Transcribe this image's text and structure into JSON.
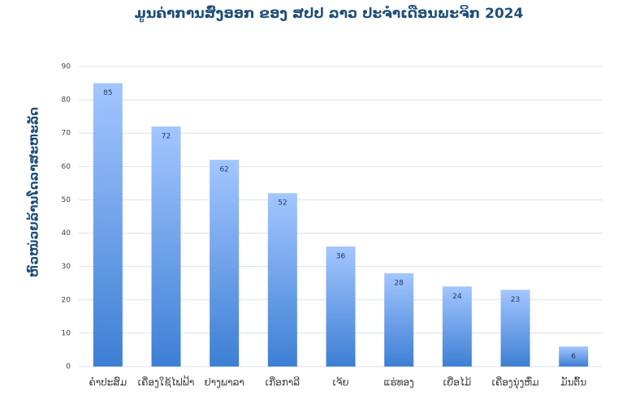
{
  "chart_data": {
    "type": "bar",
    "title": "ມູນຄ່າການສົ່ງອອກ ຂອງ ສປປ ລາວ ປະຈຳເດືອນພະຈິກ 2024",
    "y_label": "ຫົວໜ່ວຍລ້ານໂດລາສະຫະລັດ",
    "categories": [
      "ຄຳປະສົມ",
      "ເຄື່ອງໃຊ້ໄຟຟ້າ",
      "ຢາງພາລາ",
      "ເກືອກາລີ",
      "ເຈ້ຍ",
      "ແຮ່ທອງ",
      "ເຍື່ອໄມ້",
      "ເຄື່ອງນຸ່ງຫົ່ມ",
      "ມັນຕົ້ນ"
    ],
    "values": [
      85,
      72,
      62,
      52,
      36,
      28,
      24,
      23,
      6
    ],
    "gradient": [
      "#a3c6ff",
      "#3d7fd4"
    ],
    "ylim": [
      0,
      90
    ],
    "yticks": [
      0,
      10,
      20,
      30,
      40,
      50,
      60,
      70,
      80,
      90
    ],
    "grid": true
  }
}
